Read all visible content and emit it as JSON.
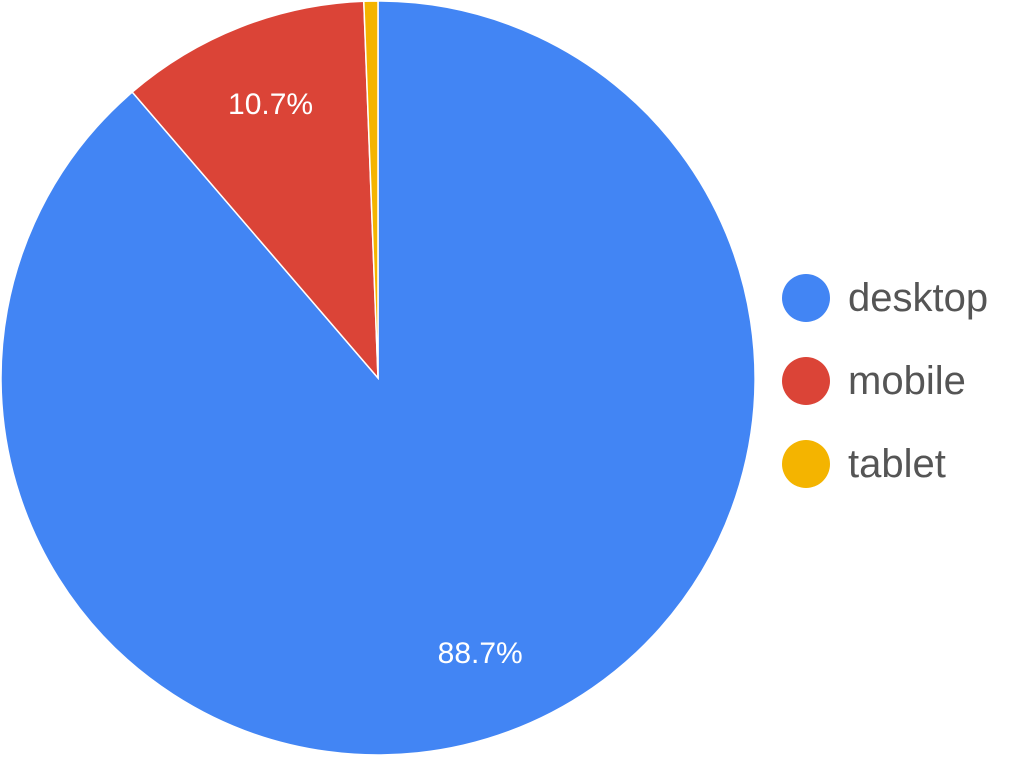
{
  "chart_data": {
    "type": "pie",
    "title": "",
    "start_angle_deg": 0,
    "direction": "clockwise",
    "legend_position": "right",
    "slices": [
      {
        "label": "desktop",
        "value": 88.7,
        "display": "88.7%",
        "color": "#4285F4"
      },
      {
        "label": "mobile",
        "value": 10.7,
        "display": "10.7%",
        "color": "#DB4437"
      },
      {
        "label": "tablet",
        "value": 0.6,
        "display": "",
        "color": "#F4B400"
      }
    ]
  }
}
